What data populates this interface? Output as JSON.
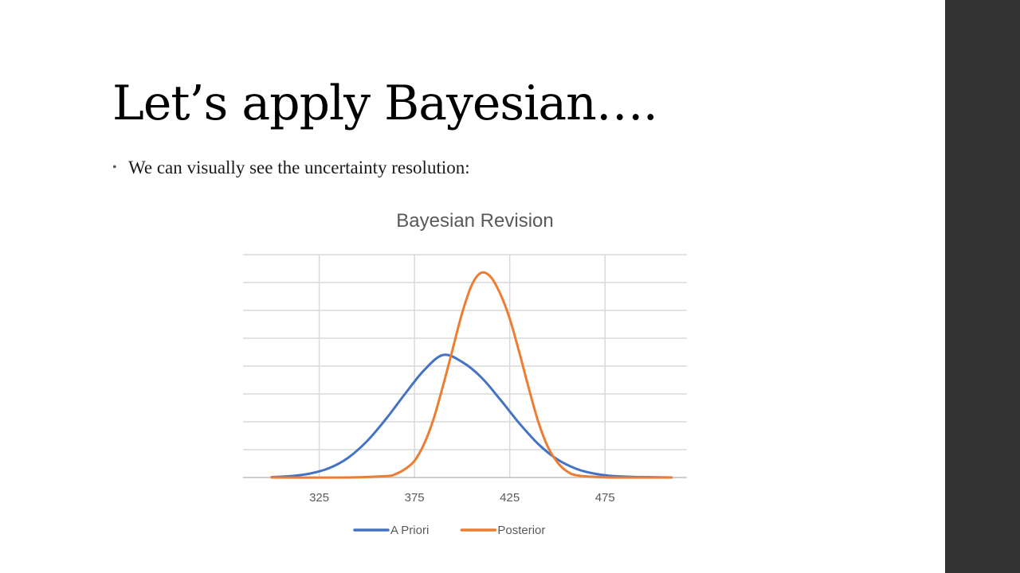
{
  "slide": {
    "title": "Let’s apply Bayesian….",
    "bullets": [
      "We can visually see the uncertainty resolution:"
    ]
  },
  "colors": {
    "sidebar": "#333333",
    "a_priori": "#4472C4",
    "posterior": "#ED7D31",
    "grid": "#d9d9d9"
  },
  "chart_data": {
    "type": "line",
    "title": "Bayesian Revision",
    "xlabel": "",
    "ylabel": "",
    "xlim": [
      285,
      518
    ],
    "ylim": [
      0,
      8
    ],
    "x_ticks": [
      325,
      375,
      425,
      475
    ],
    "y_gridlines": 8,
    "y_tick_labels": false,
    "grid": true,
    "legend": "bottom",
    "series": [
      {
        "name": "A Priori",
        "color": "#4472C4",
        "x": [
          300,
          310,
          320,
          330,
          340,
          350,
          360,
          370,
          380,
          390,
          400,
          410,
          420,
          430,
          440,
          450,
          460,
          470,
          480,
          490,
          500,
          510
        ],
        "y": [
          0.01,
          0.05,
          0.14,
          0.33,
          0.7,
          1.3,
          2.1,
          3.0,
          3.85,
          4.4,
          4.15,
          3.6,
          2.8,
          1.95,
          1.2,
          0.65,
          0.31,
          0.13,
          0.05,
          0.02,
          0.01,
          0.0
        ]
      },
      {
        "name": "Posterior",
        "color": "#ED7D31",
        "x": [
          300,
          340,
          360,
          365,
          370,
          375,
          380,
          385,
          390,
          395,
          400,
          405,
          410,
          415,
          420,
          425,
          430,
          435,
          440,
          445,
          450,
          455,
          460,
          470,
          480,
          510
        ],
        "y": [
          0.0,
          0.0,
          0.05,
          0.12,
          0.3,
          0.6,
          1.2,
          2.1,
          3.3,
          4.6,
          5.9,
          6.9,
          7.35,
          7.2,
          6.6,
          5.7,
          4.5,
          3.2,
          2.0,
          1.1,
          0.55,
          0.22,
          0.08,
          0.02,
          0.0,
          0.0
        ]
      }
    ]
  }
}
